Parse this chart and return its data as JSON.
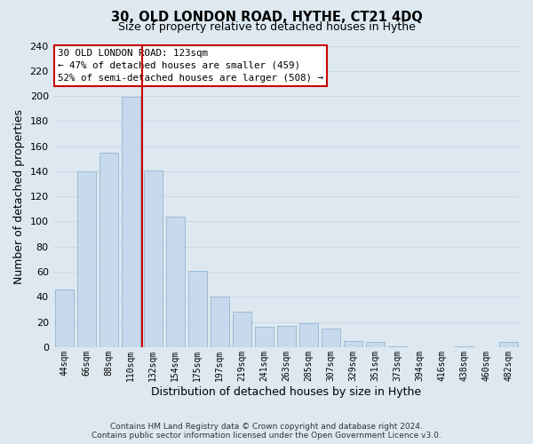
{
  "title": "30, OLD LONDON ROAD, HYTHE, CT21 4DQ",
  "subtitle": "Size of property relative to detached houses in Hythe",
  "xlabel": "Distribution of detached houses by size in Hythe",
  "ylabel": "Number of detached properties",
  "bar_labels": [
    "44sqm",
    "66sqm",
    "88sqm",
    "110sqm",
    "132sqm",
    "154sqm",
    "175sqm",
    "197sqm",
    "219sqm",
    "241sqm",
    "263sqm",
    "285sqm",
    "307sqm",
    "329sqm",
    "351sqm",
    "373sqm",
    "394sqm",
    "416sqm",
    "438sqm",
    "460sqm",
    "482sqm"
  ],
  "bar_values": [
    46,
    140,
    155,
    199,
    141,
    104,
    61,
    40,
    28,
    16,
    17,
    19,
    15,
    5,
    4,
    1,
    0,
    0,
    1,
    0,
    4
  ],
  "bar_color": "#c8d9ed",
  "bar_edge_color": "#9bbcd6",
  "highlight_line_index": 4,
  "highlight_line_color": "#cc0000",
  "ylim": [
    0,
    240
  ],
  "yticks": [
    0,
    20,
    40,
    60,
    80,
    100,
    120,
    140,
    160,
    180,
    200,
    220,
    240
  ],
  "annotation_title": "30 OLD LONDON ROAD: 123sqm",
  "annotation_line1": "← 47% of detached houses are smaller (459)",
  "annotation_line2": "52% of semi-detached houses are larger (508) →",
  "annotation_box_color": "#ffffff",
  "annotation_box_edge": "#cc0000",
  "footer_line1": "Contains HM Land Registry data © Crown copyright and database right 2024.",
  "footer_line2": "Contains public sector information licensed under the Open Government Licence v3.0.",
  "grid_color": "#ccdaeb",
  "background_color": "#dde8f0"
}
